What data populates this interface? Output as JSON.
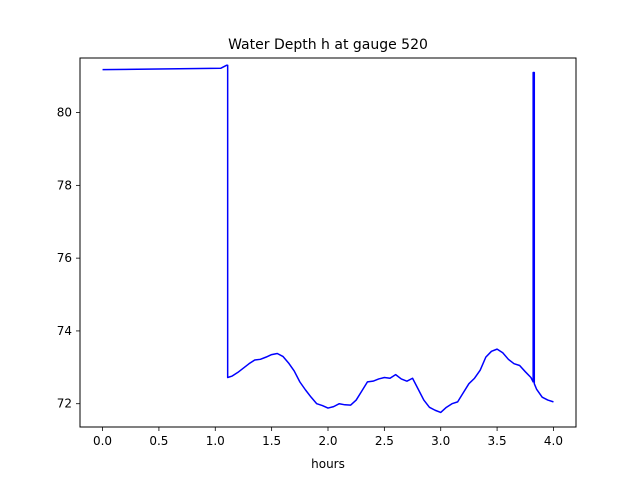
{
  "chart_data": {
    "type": "line",
    "title": "Water Depth h at gauge 520",
    "xlabel": "hours",
    "ylabel": "",
    "xlim": [
      -0.2,
      4.2
    ],
    "ylim": [
      71.36,
      81.5
    ],
    "xticks": [
      0.0,
      0.5,
      1.0,
      1.5,
      2.0,
      2.5,
      3.0,
      3.5,
      4.0
    ],
    "xtick_labels": [
      "0.0",
      "0.5",
      "1.0",
      "1.5",
      "2.0",
      "2.5",
      "3.0",
      "3.5",
      "4.0"
    ],
    "yticks": [
      72,
      74,
      76,
      78,
      80
    ],
    "ytick_labels": [
      "72",
      "74",
      "76",
      "78",
      "80"
    ],
    "grid": false,
    "legend": null,
    "series": [
      {
        "color": "#0000ff",
        "x": [
          0.0,
          1.05,
          1.1,
          1.11,
          1.11,
          1.15,
          1.2,
          1.25,
          1.3,
          1.35,
          1.4,
          1.45,
          1.5,
          1.55,
          1.6,
          1.65,
          1.7,
          1.75,
          1.8,
          1.85,
          1.9,
          1.95,
          2.0,
          2.05,
          2.1,
          2.15,
          2.2,
          2.25,
          2.3,
          2.35,
          2.4,
          2.45,
          2.5,
          2.55,
          2.6,
          2.65,
          2.7,
          2.75,
          2.8,
          2.85,
          2.9,
          2.95,
          3.0,
          3.05,
          3.1,
          3.15,
          3.2,
          3.25,
          3.3,
          3.35,
          3.4,
          3.45,
          3.5,
          3.55,
          3.6,
          3.65,
          3.7,
          3.75,
          3.8,
          3.82,
          3.82,
          3.83,
          3.83,
          3.85,
          3.9,
          3.95,
          4.0
        ],
        "y": [
          81.18,
          81.22,
          81.3,
          81.3,
          72.72,
          72.76,
          72.86,
          72.98,
          73.1,
          73.2,
          73.22,
          73.28,
          73.35,
          73.38,
          73.3,
          73.12,
          72.9,
          72.6,
          72.38,
          72.18,
          72.0,
          71.95,
          71.88,
          71.92,
          72.0,
          71.97,
          71.96,
          72.1,
          72.35,
          72.6,
          72.62,
          72.68,
          72.72,
          72.7,
          72.8,
          72.68,
          72.62,
          72.7,
          72.4,
          72.1,
          71.9,
          71.82,
          71.76,
          71.9,
          72.0,
          72.05,
          72.3,
          72.55,
          72.7,
          72.92,
          73.28,
          73.44,
          73.5,
          73.4,
          73.22,
          73.1,
          73.05,
          72.88,
          72.72,
          72.6,
          81.1,
          81.1,
          72.55,
          72.4,
          72.18,
          72.1,
          72.05
        ]
      }
    ]
  }
}
